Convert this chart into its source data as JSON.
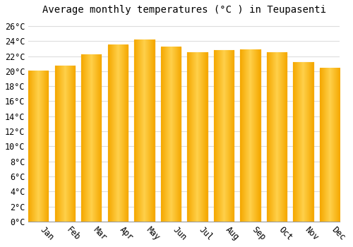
{
  "title": "Average monthly temperatures (°C ) in Teupasenti",
  "months": [
    "Jan",
    "Feb",
    "Mar",
    "Apr",
    "May",
    "Jun",
    "Jul",
    "Aug",
    "Sep",
    "Oct",
    "Nov",
    "Dec"
  ],
  "values": [
    20.0,
    20.7,
    22.2,
    23.5,
    24.2,
    23.2,
    22.5,
    22.8,
    22.9,
    22.5,
    21.2,
    20.4
  ],
  "bar_color_center": "#FFD04A",
  "bar_color_edge": "#F5A800",
  "background_color": "#FFFFFF",
  "grid_color": "#DDDDDD",
  "ylim": [
    0,
    27
  ],
  "yticks": [
    0,
    2,
    4,
    6,
    8,
    10,
    12,
    14,
    16,
    18,
    20,
    22,
    24,
    26
  ],
  "title_fontsize": 10,
  "tick_fontsize": 8.5,
  "font_family": "monospace",
  "xlabel_rotation": -45
}
